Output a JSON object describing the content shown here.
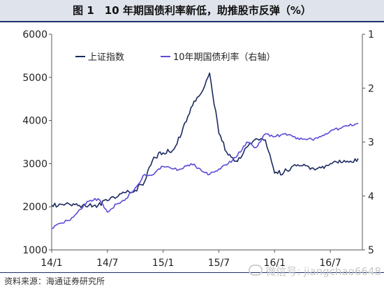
{
  "title": "图 1　10 年期国债利率新低，助推股市反弹（%）",
  "source": "资料来源：海通证券研究所",
  "watermark": "微信号: jiangchao6648",
  "chart_data": {
    "type": "line",
    "title": "图 1　10 年期国债利率新低，助推股市反弹（%）",
    "x_ticks": [
      "14/1",
      "14/7",
      "15/1",
      "15/7",
      "16/1",
      "16/7"
    ],
    "x_range": [
      "2014-01",
      "2016-10"
    ],
    "left_axis": {
      "ticks": [
        6000,
        5000,
        4000,
        3000,
        2000,
        1000
      ],
      "range": [
        1000,
        6000
      ]
    },
    "right_axis": {
      "ticks": [
        1,
        2,
        3,
        4,
        5
      ],
      "range": [
        1,
        5
      ],
      "inverted": true
    },
    "legend_position": "top-left",
    "grid": false,
    "series": [
      {
        "name": "上证指数",
        "axis": "left",
        "color": "#1b2a5e",
        "points": [
          [
            "2014-01",
            2040
          ],
          [
            "2014-02",
            2060
          ],
          [
            "2014-03",
            2050
          ],
          [
            "2014-04",
            2030
          ],
          [
            "2014-05",
            2030
          ],
          [
            "2014-06",
            2030
          ],
          [
            "2014-07",
            2140
          ],
          [
            "2014-08",
            2220
          ],
          [
            "2014-09",
            2330
          ],
          [
            "2014-10",
            2380
          ],
          [
            "2014-11",
            2580
          ],
          [
            "2014-12",
            3150
          ],
          [
            "2015-01",
            3250
          ],
          [
            "2015-02",
            3300
          ],
          [
            "2015-03",
            3700
          ],
          [
            "2015-04",
            4300
          ],
          [
            "2015-05",
            4600
          ],
          [
            "2015-06",
            5100
          ],
          [
            "2015-07",
            3700
          ],
          [
            "2015-08",
            3200
          ],
          [
            "2015-09",
            3050
          ],
          [
            "2015-10",
            3380
          ],
          [
            "2015-11",
            3580
          ],
          [
            "2015-12",
            3550
          ],
          [
            "2016-01",
            2780
          ],
          [
            "2016-02",
            2800
          ],
          [
            "2016-03",
            2950
          ],
          [
            "2016-04",
            2950
          ],
          [
            "2016-05",
            2900
          ],
          [
            "2016-06",
            2900
          ],
          [
            "2016-07",
            3000
          ],
          [
            "2016-08",
            3080
          ],
          [
            "2016-09",
            3030
          ],
          [
            "2016-10",
            3120
          ]
        ]
      },
      {
        "name": "10年期国债利率（右轴）",
        "axis": "right",
        "color": "#5a4bd8",
        "points": [
          [
            "2014-01",
            4.6
          ],
          [
            "2014-02",
            4.5
          ],
          [
            "2014-03",
            4.45
          ],
          [
            "2014-04",
            4.25
          ],
          [
            "2014-05",
            4.1
          ],
          [
            "2014-06",
            4.05
          ],
          [
            "2014-07",
            4.3
          ],
          [
            "2014-08",
            4.15
          ],
          [
            "2014-09",
            4.05
          ],
          [
            "2014-10",
            3.85
          ],
          [
            "2014-11",
            3.6
          ],
          [
            "2014-12",
            3.6
          ],
          [
            "2015-01",
            3.45
          ],
          [
            "2015-02",
            3.5
          ],
          [
            "2015-03",
            3.5
          ],
          [
            "2015-04",
            3.4
          ],
          [
            "2015-05",
            3.5
          ],
          [
            "2015-06",
            3.6
          ],
          [
            "2015-07",
            3.5
          ],
          [
            "2015-08",
            3.4
          ],
          [
            "2015-09",
            3.25
          ],
          [
            "2015-10",
            3.0
          ],
          [
            "2015-11",
            3.1
          ],
          [
            "2015-12",
            2.85
          ],
          [
            "2016-01",
            2.9
          ],
          [
            "2016-02",
            2.85
          ],
          [
            "2016-03",
            2.9
          ],
          [
            "2016-04",
            2.95
          ],
          [
            "2016-05",
            2.95
          ],
          [
            "2016-06",
            2.9
          ],
          [
            "2016-07",
            2.8
          ],
          [
            "2016-08",
            2.75
          ],
          [
            "2016-09",
            2.7
          ],
          [
            "2016-10",
            2.65
          ]
        ]
      }
    ]
  }
}
